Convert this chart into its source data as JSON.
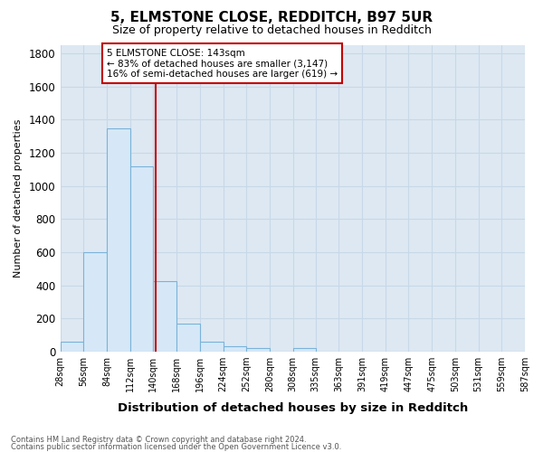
{
  "title": "5, ELMSTONE CLOSE, REDDITCH, B97 5UR",
  "subtitle": "Size of property relative to detached houses in Redditch",
  "xlabel": "Distribution of detached houses by size in Redditch",
  "ylabel": "Number of detached properties",
  "annotation_line1": "5 ELMSTONE CLOSE: 143sqm",
  "annotation_line2": "← 83% of detached houses are smaller (3,147)",
  "annotation_line3": "16% of semi-detached houses are larger (619) →",
  "footnote1": "Contains HM Land Registry data © Crown copyright and database right 2024.",
  "footnote2": "Contains public sector information licensed under the Open Government Licence v3.0.",
  "bar_edges": [
    28,
    56,
    84,
    112,
    140,
    168,
    196,
    224,
    252,
    280,
    308,
    335,
    363,
    391,
    419,
    447,
    475,
    503,
    531,
    559,
    587
  ],
  "bar_heights": [
    60,
    600,
    1350,
    1120,
    425,
    170,
    60,
    35,
    20,
    0,
    20,
    0,
    0,
    0,
    0,
    0,
    0,
    0,
    0,
    0
  ],
  "property_size": 143,
  "bar_face_color": "#d6e8f7",
  "bar_edge_color": "#7ab3d9",
  "vline_color": "#c00000",
  "annotation_box_edge": "#c00000",
  "grid_color": "#c8d8e8",
  "plot_bg_color": "#dde8f3",
  "fig_bg_color": "#ffffff",
  "ylim": [
    0,
    1850
  ],
  "yticks": [
    0,
    200,
    400,
    600,
    800,
    1000,
    1200,
    1400,
    1600,
    1800
  ],
  "xtick_labels": [
    "28sqm",
    "56sqm",
    "84sqm",
    "112sqm",
    "140sqm",
    "168sqm",
    "196sqm",
    "224sqm",
    "252sqm",
    "280sqm",
    "308sqm",
    "335sqm",
    "363sqm",
    "391sqm",
    "419sqm",
    "447sqm",
    "475sqm",
    "503sqm",
    "531sqm",
    "559sqm",
    "587sqm"
  ]
}
